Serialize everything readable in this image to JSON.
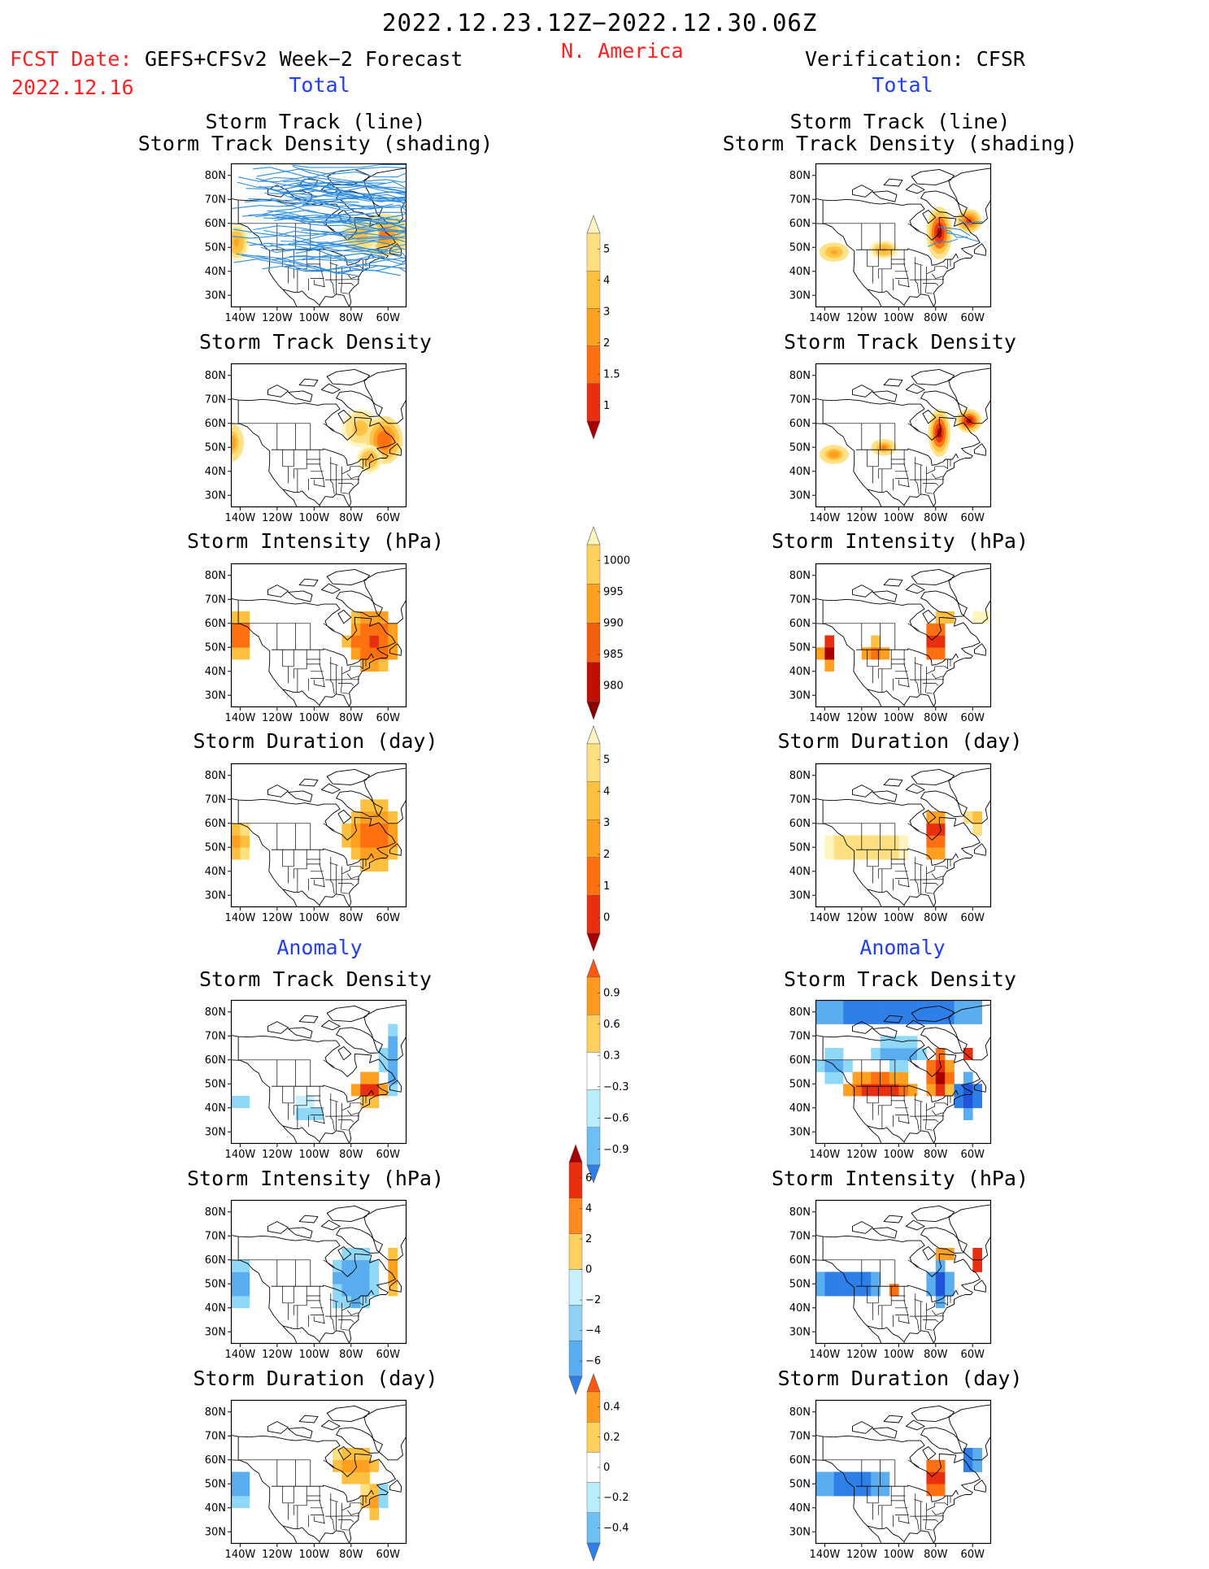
{
  "header": {
    "date_range": "2022.12.23.12Z−2022.12.30.06Z",
    "region": "N. America",
    "fcst_label": "FCST Date:",
    "fcst_model": "GEFS+CFSv2 Week−2 Forecast",
    "fcst_date": "2022.12.16",
    "verification": "Verification: CFSR",
    "left_total": "Total",
    "right_total": "Total",
    "left_anomaly": "Anomaly",
    "right_anomaly": "Anomaly"
  },
  "axes": {
    "lat_labels": [
      "80N",
      "70N",
      "60N",
      "50N",
      "40N",
      "30N"
    ],
    "lon_labels": [
      "140W",
      "120W",
      "100W",
      "80W",
      "60W"
    ]
  },
  "colors": {
    "pos": [
      "#fff5c0",
      "#ffe080",
      "#ffc040",
      "#ffa020",
      "#ff7010",
      "#e83010",
      "#a80000"
    ],
    "neg": [
      "#ffffff",
      "#c8f0ff",
      "#90d8f8",
      "#5aaef0",
      "#2f7fe8",
      "#1f55d8"
    ],
    "track_line": "#2e8de0",
    "cbar_outline": "#555555"
  },
  "panels": {
    "left": [
      {
        "title": [
          "Storm Track (line)",
          "Storm Track Density (shading)"
        ],
        "kind": "tracks"
      },
      {
        "title": [
          "Storm Track Density"
        ],
        "kind": "density"
      },
      {
        "title": [
          "Storm Intensity (hPa)"
        ],
        "kind": "intensity"
      },
      {
        "title": [
          "Storm Duration (day)"
        ],
        "kind": "duration"
      },
      {
        "title": [
          "Storm Track Density"
        ],
        "kind": "anom_density"
      },
      {
        "title": [
          "Storm Intensity (hPa)"
        ],
        "kind": "anom_intensity"
      },
      {
        "title": [
          "Storm Duration (day)"
        ],
        "kind": "anom_duration"
      }
    ],
    "right": [
      {
        "title": [
          "Storm Track (line)",
          "Storm Track Density (shading)"
        ],
        "kind": "tracks"
      },
      {
        "title": [
          "Storm Track Density"
        ],
        "kind": "density"
      },
      {
        "title": [
          "Storm Intensity (hPa)"
        ],
        "kind": "intensity"
      },
      {
        "title": [
          "Storm Duration (day)"
        ],
        "kind": "duration"
      },
      {
        "title": [
          "Storm Track Density"
        ],
        "kind": "anom_density"
      },
      {
        "title": [
          "Storm Intensity (hPa)"
        ],
        "kind": "anom_intensity"
      },
      {
        "title": [
          "Storm Duration (day)"
        ],
        "kind": "anom_duration"
      }
    ]
  },
  "colorbars": [
    {
      "name": "density",
      "labels": [
        "5",
        "4",
        "3",
        "2",
        "1.5",
        "1"
      ]
    },
    {
      "name": "intensity",
      "labels": [
        "1000",
        "995",
        "990",
        "985",
        "980"
      ]
    },
    {
      "name": "duration",
      "labels": [
        "5",
        "4",
        "3",
        "2",
        "1",
        "0"
      ]
    },
    {
      "name": "anom_density",
      "labels": [
        "0.9",
        "0.6",
        "0.3",
        "−0.3",
        "−0.6",
        "−0.9"
      ]
    },
    {
      "name": "anom_intensity",
      "labels": [
        "6",
        "4",
        "2",
        "0",
        "−2",
        "−4",
        "−6"
      ]
    },
    {
      "name": "anom_duration",
      "labels": [
        "0.4",
        "0.2",
        "0",
        "−0.2",
        "−0.4"
      ]
    }
  ]
}
